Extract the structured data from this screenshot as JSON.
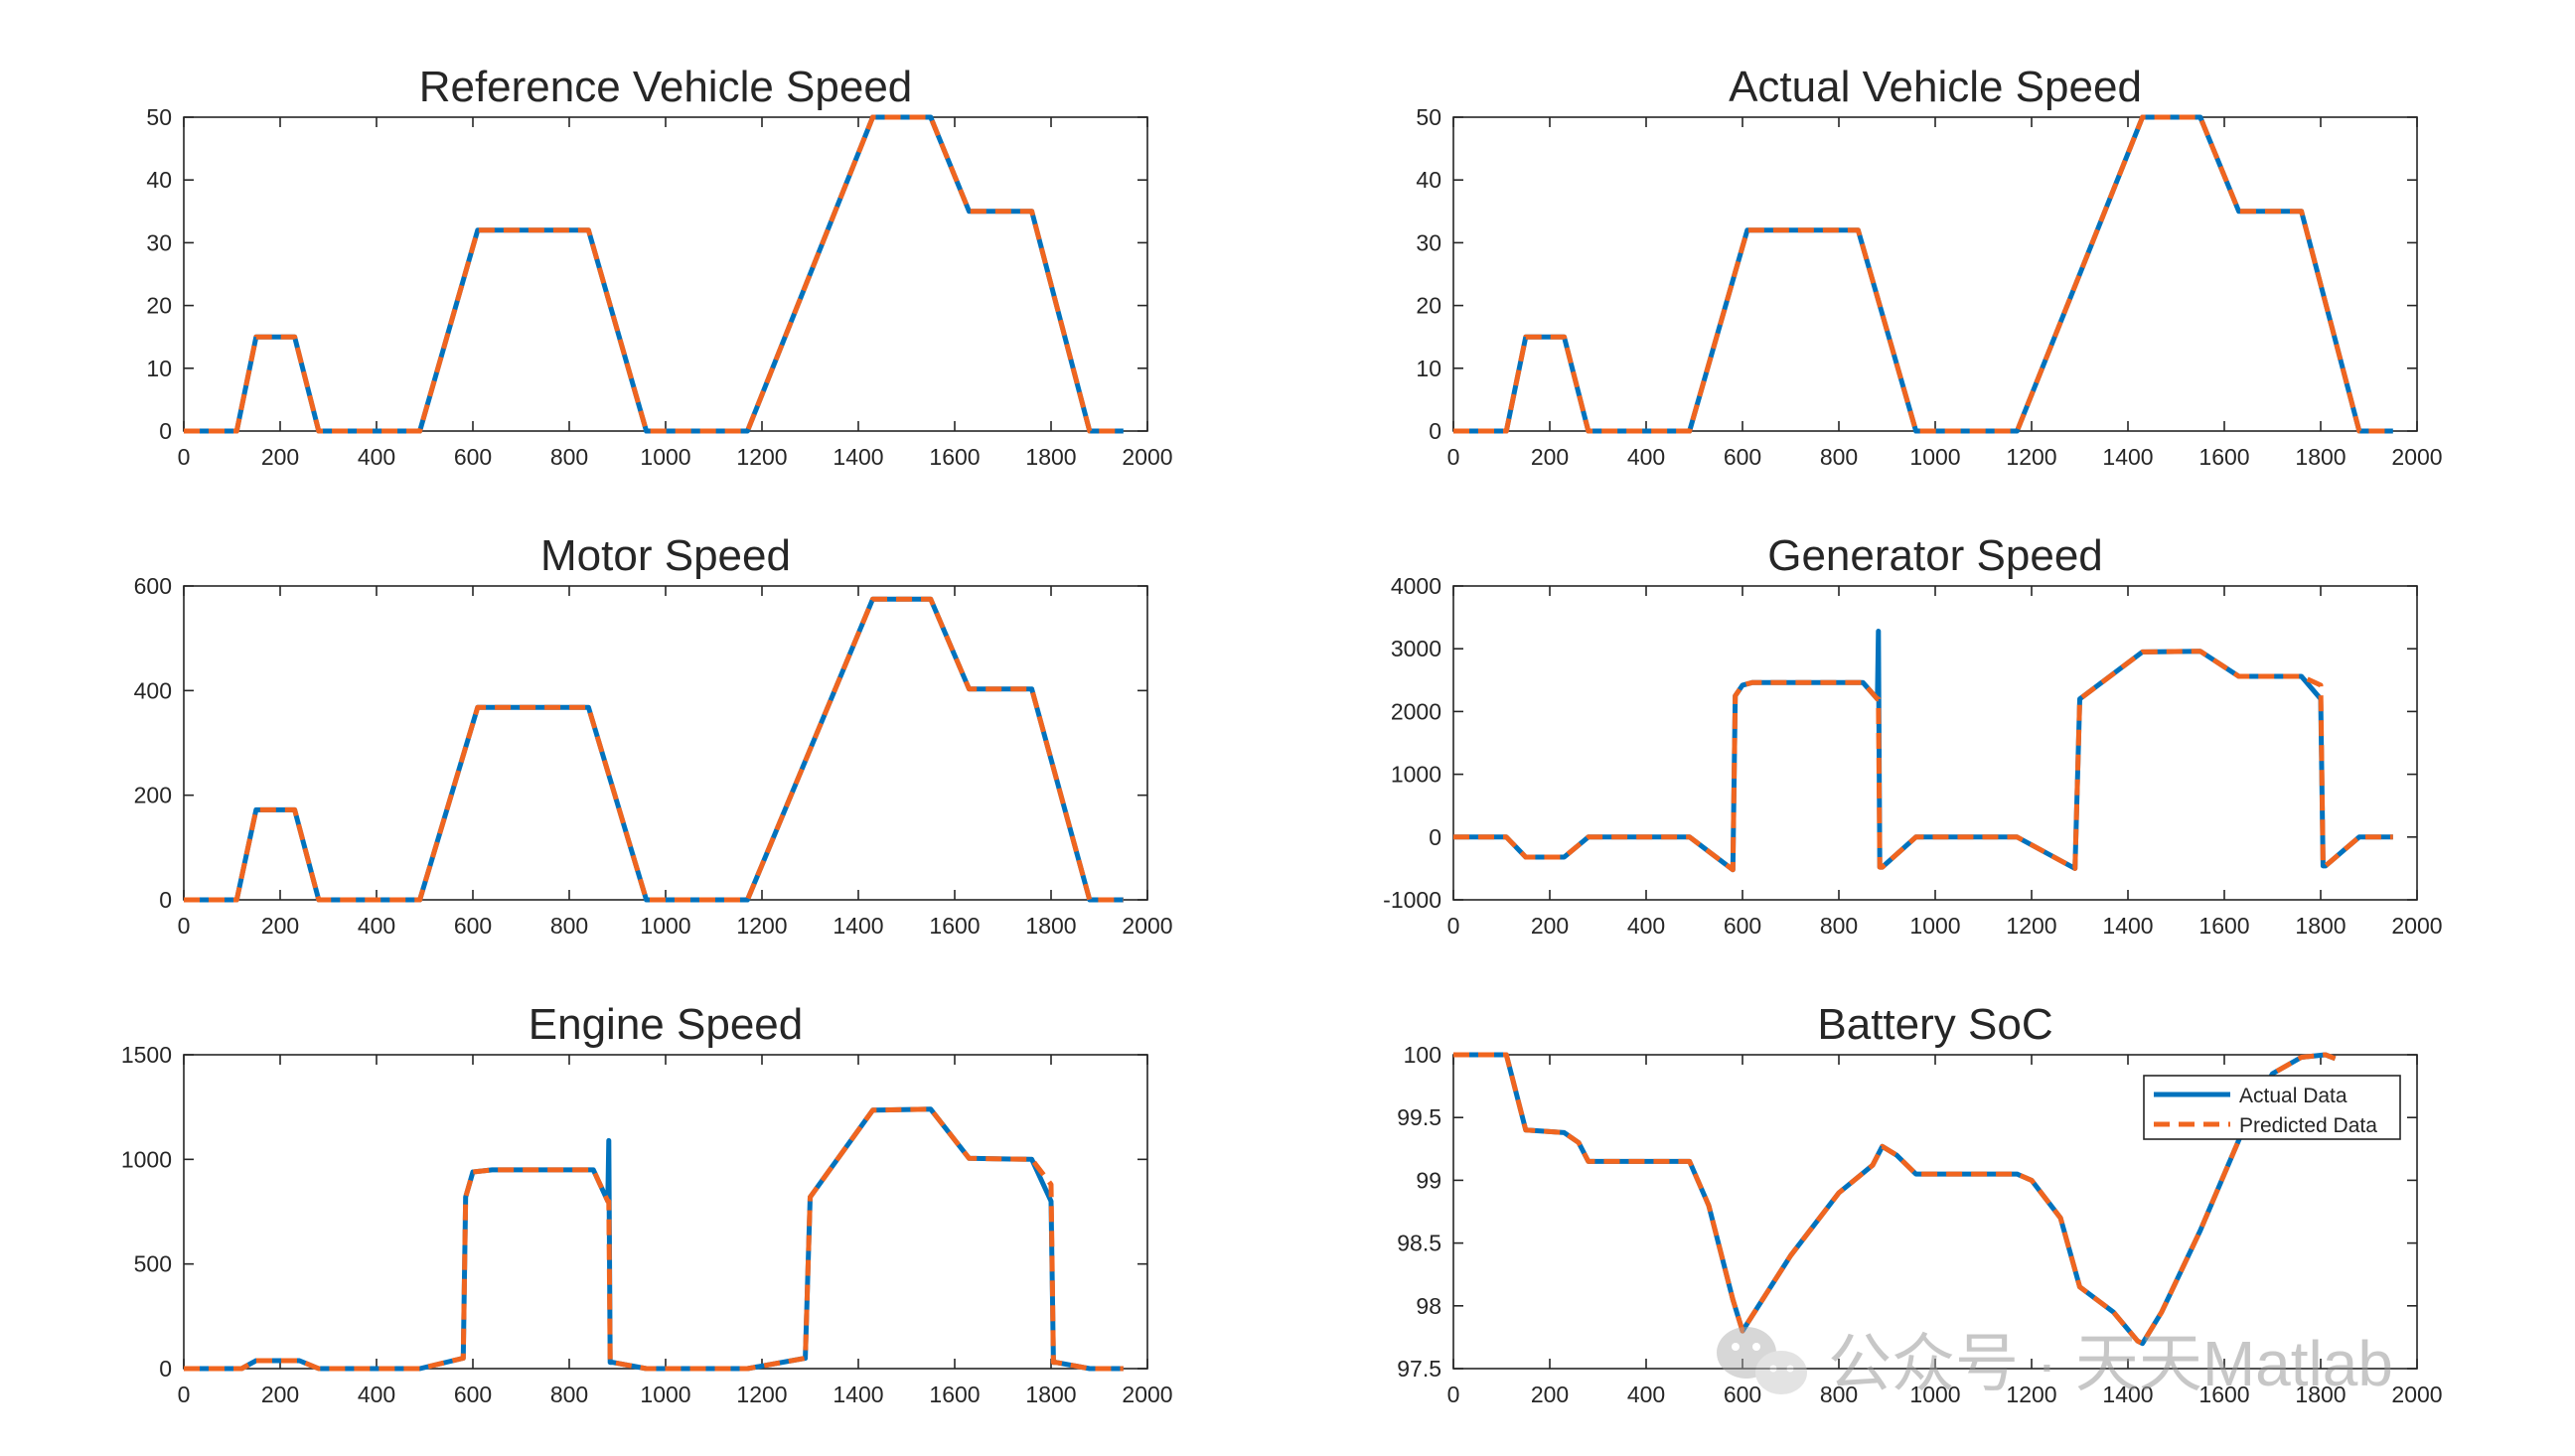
{
  "colors": {
    "actual": "#0072BD",
    "predicted": "#F0651F"
  },
  "legend": {
    "actual_label": "Actual Data",
    "predicted_label": "Predicted Data"
  },
  "watermark": {
    "text": "公众号 · 天天Matlab"
  },
  "chart_data": [
    {
      "type": "line",
      "title": "Reference Vehicle Speed",
      "xlim": [
        0,
        2000
      ],
      "ylim": [
        0,
        50
      ],
      "xticks": [
        0,
        200,
        400,
        600,
        800,
        1000,
        1200,
        1400,
        1600,
        1800,
        2000
      ],
      "yticks": [
        0,
        10,
        20,
        30,
        40,
        50
      ],
      "x": [
        0,
        110,
        150,
        230,
        280,
        490,
        610,
        840,
        960,
        1170,
        1430,
        1550,
        1630,
        1760,
        1880,
        1950
      ],
      "series": [
        {
          "name": "Actual Data",
          "values": [
            0,
            0,
            15,
            15,
            0,
            0,
            32,
            32,
            0,
            0,
            50,
            50,
            35,
            35,
            0,
            0
          ]
        },
        {
          "name": "Predicted Data",
          "values": [
            0,
            0,
            15,
            15,
            0,
            0,
            32,
            32,
            0,
            0,
            50,
            50,
            35,
            35,
            0,
            0
          ]
        }
      ]
    },
    {
      "type": "line",
      "title": "Actual Vehicle Speed",
      "xlim": [
        0,
        2000
      ],
      "ylim": [
        0,
        50
      ],
      "xticks": [
        0,
        200,
        400,
        600,
        800,
        1000,
        1200,
        1400,
        1600,
        1800,
        2000
      ],
      "yticks": [
        0,
        10,
        20,
        30,
        40,
        50
      ],
      "x": [
        0,
        110,
        150,
        230,
        280,
        490,
        610,
        840,
        960,
        1170,
        1430,
        1550,
        1630,
        1760,
        1880,
        1950
      ],
      "series": [
        {
          "name": "Actual Data",
          "values": [
            0,
            0,
            15,
            15,
            0,
            0,
            32,
            32,
            0,
            0,
            50,
            50,
            35,
            35,
            0,
            0
          ]
        },
        {
          "name": "Predicted Data",
          "values": [
            0,
            0,
            15,
            15,
            0,
            0,
            32,
            32,
            0,
            0,
            50,
            50,
            35,
            35,
            0,
            0
          ]
        }
      ]
    },
    {
      "type": "line",
      "title": "Motor Speed",
      "xlim": [
        0,
        2000
      ],
      "ylim": [
        0,
        600
      ],
      "xticks": [
        0,
        200,
        400,
        600,
        800,
        1000,
        1200,
        1400,
        1600,
        1800,
        2000
      ],
      "yticks": [
        0,
        200,
        400,
        600
      ],
      "x": [
        0,
        110,
        150,
        230,
        280,
        490,
        610,
        840,
        960,
        1170,
        1430,
        1550,
        1630,
        1760,
        1880,
        1950
      ],
      "series": [
        {
          "name": "Actual Data",
          "values": [
            0,
            0,
            172,
            172,
            0,
            0,
            368,
            368,
            0,
            0,
            575,
            575,
            403,
            403,
            0,
            0
          ]
        },
        {
          "name": "Predicted Data",
          "values": [
            0,
            0,
            172,
            172,
            0,
            0,
            368,
            368,
            0,
            0,
            575,
            575,
            403,
            403,
            0,
            0
          ]
        }
      ]
    },
    {
      "type": "line",
      "title": "Generator Speed",
      "xlim": [
        0,
        2000
      ],
      "ylim": [
        -1000,
        4000
      ],
      "xticks": [
        0,
        200,
        400,
        600,
        800,
        1000,
        1200,
        1400,
        1600,
        1800,
        2000
      ],
      "yticks": [
        -1000,
        0,
        1000,
        2000,
        3000,
        4000
      ],
      "x": [
        0,
        110,
        150,
        230,
        280,
        490,
        580,
        585,
        600,
        620,
        700,
        850,
        880,
        882,
        885,
        890,
        960,
        1170,
        1290,
        1300,
        1430,
        1550,
        1630,
        1760,
        1800,
        1805,
        1810,
        1880,
        1950
      ],
      "series": [
        {
          "name": "Actual Data",
          "values": [
            0,
            0,
            -320,
            -320,
            0,
            0,
            -520,
            2250,
            2420,
            2460,
            2460,
            2460,
            2200,
            3280,
            -480,
            -480,
            0,
            0,
            -500,
            2200,
            2950,
            2960,
            2560,
            2560,
            2200,
            -460,
            -460,
            0,
            0
          ]
        },
        {
          "name": "Predicted Data",
          "values": [
            0,
            0,
            -320,
            -320,
            0,
            0,
            -520,
            2250,
            2420,
            2460,
            2460,
            2460,
            2200,
            2200,
            -480,
            -480,
            0,
            0,
            -500,
            2200,
            2950,
            2960,
            2560,
            2560,
            2420,
            -460,
            -460,
            0,
            0
          ]
        }
      ]
    },
    {
      "type": "line",
      "title": "Engine Speed",
      "xlim": [
        0,
        2000
      ],
      "ylim": [
        0,
        1500
      ],
      "xticks": [
        0,
        200,
        400,
        600,
        800,
        1000,
        1200,
        1400,
        1600,
        1800,
        2000
      ],
      "yticks": [
        0,
        500,
        1000,
        1500
      ],
      "x": [
        0,
        120,
        150,
        240,
        280,
        490,
        580,
        585,
        600,
        640,
        850,
        880,
        882,
        885,
        890,
        960,
        1170,
        1290,
        1300,
        1430,
        1550,
        1630,
        1760,
        1800,
        1805,
        1810,
        1880,
        1950
      ],
      "series": [
        {
          "name": "Actual Data",
          "values": [
            0,
            0,
            38,
            38,
            0,
            0,
            50,
            820,
            940,
            950,
            950,
            800,
            1090,
            30,
            30,
            0,
            0,
            50,
            820,
            1235,
            1240,
            1005,
            1000,
            800,
            30,
            30,
            0,
            0
          ]
        },
        {
          "name": "Predicted Data",
          "values": [
            0,
            0,
            38,
            38,
            0,
            0,
            50,
            820,
            940,
            950,
            950,
            800,
            800,
            30,
            30,
            0,
            0,
            50,
            820,
            1235,
            1240,
            1005,
            1000,
            880,
            30,
            30,
            0,
            0
          ]
        }
      ]
    },
    {
      "type": "line",
      "title": "Battery SoC",
      "xlim": [
        0,
        2000
      ],
      "ylim": [
        97.5,
        100
      ],
      "xticks": [
        0,
        200,
        400,
        600,
        800,
        1000,
        1200,
        1400,
        1600,
        1800,
        2000
      ],
      "yticks": [
        97.5,
        98,
        98.5,
        99,
        99.5,
        100
      ],
      "ytick_labels": [
        "97.5",
        "98",
        "98.5",
        "99",
        "99.5",
        "100"
      ],
      "legend_position": "top-right",
      "x": [
        0,
        110,
        150,
        230,
        260,
        280,
        490,
        530,
        580,
        600,
        620,
        700,
        800,
        870,
        890,
        920,
        960,
        1170,
        1200,
        1260,
        1300,
        1370,
        1420,
        1430,
        1470,
        1550,
        1600,
        1650,
        1700,
        1760,
        1810,
        1830
      ],
      "series": [
        {
          "name": "Actual Data",
          "values": [
            100,
            100,
            99.4,
            99.38,
            99.3,
            99.15,
            99.15,
            98.8,
            98.05,
            97.8,
            97.92,
            98.4,
            98.9,
            99.12,
            99.27,
            99.2,
            99.05,
            99.05,
            99.0,
            98.7,
            98.15,
            97.95,
            97.72,
            97.7,
            97.95,
            98.6,
            99.05,
            99.5,
            99.85,
            99.98,
            100.0,
            99.97
          ]
        },
        {
          "name": "Predicted Data",
          "values": [
            100,
            100,
            99.4,
            99.38,
            99.3,
            99.15,
            99.15,
            98.8,
            98.05,
            97.8,
            97.92,
            98.4,
            98.9,
            99.12,
            99.27,
            99.2,
            99.05,
            99.05,
            99.0,
            98.7,
            98.15,
            97.95,
            97.72,
            97.7,
            97.95,
            98.6,
            99.05,
            99.5,
            99.85,
            99.98,
            100.0,
            99.97
          ]
        }
      ]
    }
  ]
}
